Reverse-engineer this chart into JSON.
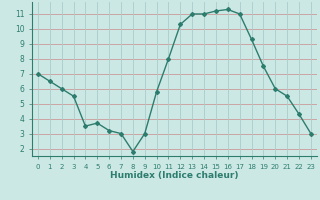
{
  "x": [
    0,
    1,
    2,
    3,
    4,
    5,
    6,
    7,
    8,
    9,
    10,
    11,
    12,
    13,
    14,
    15,
    16,
    17,
    18,
    19,
    20,
    21,
    22,
    23
  ],
  "y": [
    7.0,
    6.5,
    6.0,
    5.5,
    3.5,
    3.7,
    3.2,
    3.0,
    1.8,
    3.0,
    5.8,
    8.0,
    10.3,
    11.0,
    11.0,
    11.2,
    11.3,
    11.0,
    9.3,
    7.5,
    6.0,
    5.5,
    4.3,
    3.0
  ],
  "xlabel": "Humidex (Indice chaleur)",
  "ylim": [
    1.5,
    11.8
  ],
  "xlim": [
    -0.5,
    23.5
  ],
  "yticks": [
    2,
    3,
    4,
    5,
    6,
    7,
    8,
    9,
    10,
    11
  ],
  "xticks": [
    0,
    1,
    2,
    3,
    4,
    5,
    6,
    7,
    8,
    9,
    10,
    11,
    12,
    13,
    14,
    15,
    16,
    17,
    18,
    19,
    20,
    21,
    22,
    23
  ],
  "line_color": "#2d7d6f",
  "marker_color": "#2d7d6f",
  "bg_color": "#cce8e4",
  "grid_color_h": "#cc9999",
  "grid_color_v": "#aacccc",
  "axis_color": "#2d7d6f",
  "label_color": "#2d7d6f",
  "tick_label_color": "#2d7d6f",
  "xlabel_fontsize": 6.5,
  "tick_fontsize_x": 5.0,
  "tick_fontsize_y": 5.5
}
